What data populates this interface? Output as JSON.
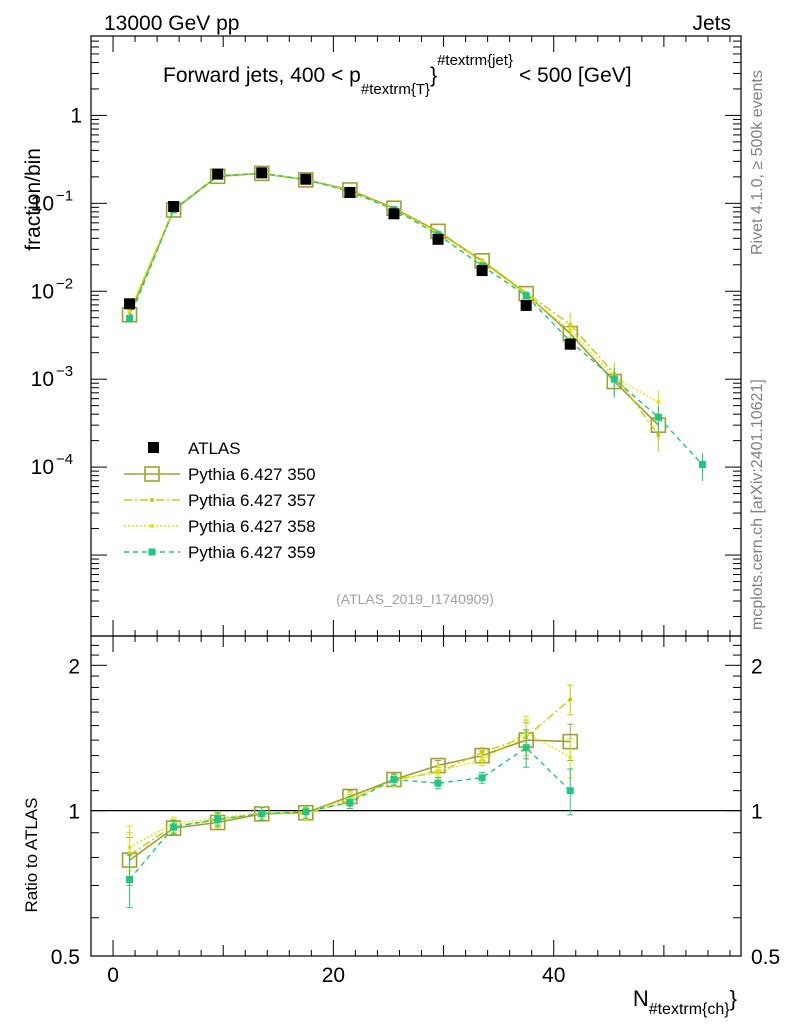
{
  "header": {
    "left": "13000 GeV pp",
    "right": "Jets"
  },
  "side_labels": {
    "top": "Rivet 4.1.0, ≥ 500k events",
    "bottom": "mcplots.cern.ch [arXiv:2401.10621]"
  },
  "colors": {
    "atlas": "#000000",
    "p350": "#a0a032",
    "p357": "#d2c800",
    "p358": "#e6e600",
    "p359": "#1ec882"
  },
  "chart_data": {
    "type": "scatter",
    "title": {
      "prefix": "Forward jets, 400 < p",
      "sub": "#textrm{T}",
      "sup": "#textrm{jet}",
      "suffix": "< 500 [GeV]"
    },
    "xlabel": {
      "main": "N",
      "sub": "#textrm{ch}"
    },
    "ylabel_main": "fraction/bin",
    "ylabel_ratio": "Ratio to ATLAS",
    "watermark": "(ATLAS_2019_I1740909)",
    "xlim": [
      -2,
      57
    ],
    "ylim_main": [
      1.2e-06,
      8
    ],
    "ylim_ratio": [
      0.5,
      2.3
    ],
    "x_ticks": [
      "0",
      "20",
      "40"
    ],
    "y_ticks_main": [
      {
        "mant": "10",
        "exp": "−4"
      },
      {
        "mant": "10",
        "exp": "−3"
      },
      {
        "mant": "10",
        "exp": "−2"
      },
      {
        "mant": "10",
        "exp": "−1"
      },
      {
        "mant": "1",
        "exp": ""
      }
    ],
    "y_ticks_ratio": [
      "0.5",
      "1",
      "2"
    ],
    "legend": [
      "ATLAS",
      "Pythia 6.427 350",
      "Pythia 6.427 357",
      "Pythia 6.427 358",
      "Pythia 6.427 359"
    ],
    "atlas": {
      "x": [
        1.5,
        5.5,
        9.5,
        13.5,
        17.5,
        21.5,
        25.5,
        29.5,
        33.5,
        37.5,
        41.5
      ],
      "y": [
        0.0072,
        0.092,
        0.215,
        0.222,
        0.188,
        0.133,
        0.076,
        0.039,
        0.0172,
        0.0069,
        0.0025
      ]
    },
    "series": [
      {
        "name": "Pythia 6.427 350",
        "x": [
          1.5,
          5.5,
          9.5,
          13.5,
          17.5,
          21.5,
          25.5,
          29.5,
          33.5,
          37.5,
          41.5,
          45.5,
          49.5
        ],
        "y": [
          0.0054,
          0.084,
          0.203,
          0.219,
          0.185,
          0.142,
          0.088,
          0.048,
          0.0222,
          0.0094,
          0.0033,
          0.00094,
          0.0003
        ],
        "ratio": [
          0.79,
          0.92,
          0.945,
          0.985,
          0.99,
          1.07,
          1.16,
          1.24,
          1.3,
          1.4,
          1.39
        ]
      },
      {
        "name": "Pythia 6.427 357",
        "x": [
          1.5,
          5.5,
          9.5,
          13.5,
          17.5,
          21.5,
          25.5,
          29.5,
          33.5,
          37.5,
          41.5,
          45.5,
          49.5
        ],
        "y": [
          0.0058,
          0.085,
          0.206,
          0.22,
          0.184,
          0.139,
          0.087,
          0.047,
          0.0225,
          0.0096,
          0.0042,
          0.00115,
          0.00023
        ],
        "ratio": [
          0.81,
          0.93,
          0.955,
          0.99,
          0.985,
          1.05,
          1.16,
          1.2,
          1.32,
          1.42,
          1.7
        ]
      },
      {
        "name": "Pythia 6.427 358",
        "x": [
          1.5,
          5.5,
          9.5,
          13.5,
          17.5,
          21.5,
          25.5,
          29.5,
          33.5,
          37.5,
          41.5,
          45.5,
          49.5
        ],
        "y": [
          0.006,
          0.086,
          0.208,
          0.22,
          0.186,
          0.14,
          0.086,
          0.046,
          0.0215,
          0.0092,
          0.0036,
          0.00105,
          0.00055
        ],
        "ratio": [
          0.84,
          0.94,
          0.965,
          0.99,
          0.99,
          1.06,
          1.15,
          1.21,
          1.27,
          1.45,
          1.29
        ]
      },
      {
        "name": "Pythia 6.427 359",
        "x": [
          1.5,
          5.5,
          9.5,
          13.5,
          17.5,
          21.5,
          25.5,
          29.5,
          33.5,
          37.5,
          41.5,
          45.5,
          49.5,
          53.5
        ],
        "y": [
          0.0049,
          0.084,
          0.205,
          0.219,
          0.187,
          0.136,
          0.085,
          0.044,
          0.0195,
          0.0089,
          0.0027,
          0.001,
          0.00037,
          0.000107
        ],
        "ratio": [
          0.72,
          0.925,
          0.96,
          0.985,
          0.995,
          1.04,
          1.16,
          1.14,
          1.17,
          1.35,
          1.1
        ]
      }
    ]
  }
}
